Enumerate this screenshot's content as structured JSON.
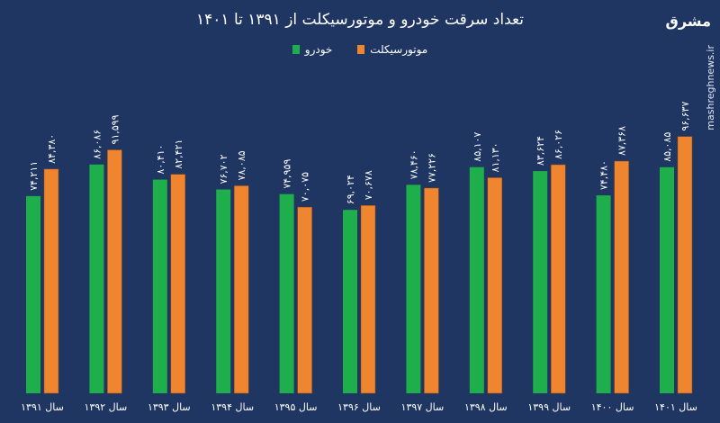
{
  "chart_data": {
    "type": "bar",
    "title": "تعداد سرقت خودرو و موتورسیکلت از ۱۳۹۱ تا ۱۴۰۱",
    "categories": [
      "سال ۱۳۹۱",
      "سال ۱۳۹۲",
      "سال ۱۳۹۳",
      "سال ۱۳۹۴",
      "سال ۱۳۹۵",
      "سال ۱۳۹۶",
      "سال ۱۳۹۷",
      "سال ۱۳۹۸",
      "سال ۱۳۹۹",
      "سال ۱۴۰۰",
      "سال ۱۴۰۱"
    ],
    "series": [
      {
        "name": "خودرو",
        "color": "#1fae4c",
        "values": [
          74211,
          86086,
          80410,
          76702,
          74959,
          69024,
          78460,
          85107,
          83624,
          74480,
          85085
        ],
        "labels": [
          "۷۴,۲۱۱",
          "۸۶,۰۸۶",
          "۸۰,۴۱۰",
          "۷۶,۷۰۲",
          "۷۴,۹۵۹",
          "۶۹,۰۲۴",
          "۷۸,۴۶۰",
          "۸۵,۱۰۷",
          "۸۳,۶۲۴",
          "۷۴,۴۸۰",
          "۸۵,۰۸۵"
        ]
      },
      {
        "name": "موتورسیکلت",
        "color": "#f0852f",
        "values": [
          84380,
          91599,
          82421,
          78085,
          70075,
          70678,
          77226,
          81130,
          86026,
          87368,
          96637
        ],
        "labels": [
          "۸۴,۳۸۰",
          "۹۱,۵۹۹",
          "۸۲,۴۲۱",
          "۷۸,۰۸۵",
          "۷۰,۰۷۵",
          "۷۰,۶۷۸",
          "۷۷,۲۲۶",
          "۸۱,۱۳۰",
          "۸۶,۰۲۶",
          "۸۷,۳۶۸",
          "۹۶,۶۳۷"
        ]
      }
    ],
    "ylim": [
      0,
      148000
    ],
    "grid": false,
    "legend": "top-center"
  },
  "branding": {
    "logo": "مشرق",
    "site": "mashreghnews.ir"
  }
}
